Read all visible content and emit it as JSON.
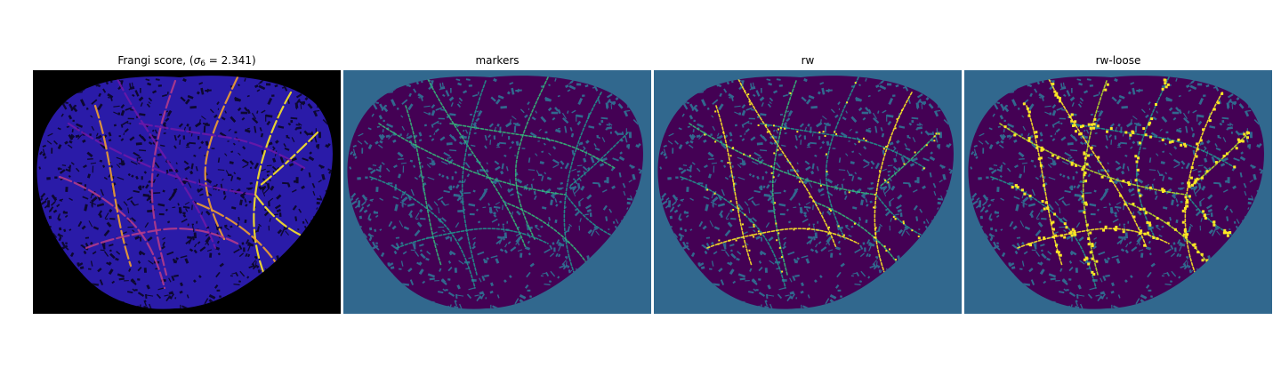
{
  "figure": {
    "panels": [
      {
        "id": "frangi",
        "title_main": "Frangi score, (",
        "title_sigma": "σ",
        "title_sub": "6",
        "title_rest": " = 2.341)",
        "background": "#000000",
        "tissue_color": "#2a1ba8",
        "texture_color": "#0d0830",
        "vessel_colors": [
          "#6a18a8",
          "#b13b8a",
          "#f0a030",
          "#fde725"
        ]
      },
      {
        "id": "markers",
        "title": "markers",
        "background": "#31688e",
        "tissue_color": "#440154",
        "texture_color": "#31688e",
        "vessel_colors": [
          "#35b779",
          "#21918c"
        ]
      },
      {
        "id": "rw",
        "title": "rw",
        "background": "#31688e",
        "tissue_color": "#440154",
        "texture_color": "#31688e",
        "vessel_colors": [
          "#fde725",
          "#35b779",
          "#21918c"
        ]
      },
      {
        "id": "rw-loose",
        "title": "rw-loose",
        "background": "#31688e",
        "tissue_color": "#440154",
        "texture_color": "#31688e",
        "vessel_colors": [
          "#fde725",
          "#b5de2b",
          "#21918c"
        ]
      }
    ]
  }
}
